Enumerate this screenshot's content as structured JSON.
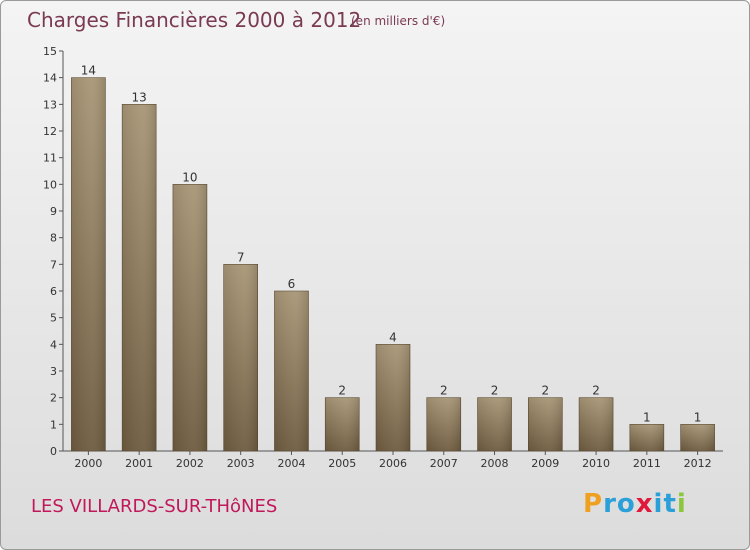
{
  "header": {
    "title": "Charges Financières 2000 à 2012",
    "unit": "(en milliers d'€)"
  },
  "footer": {
    "place": "LES VILLARDS-SUR-THôNES",
    "logo": {
      "text": "Proxiti",
      "letters": [
        {
          "ch": "P",
          "color": "#f0a020"
        },
        {
          "ch": "r",
          "color": "#2a9fd8"
        },
        {
          "ch": "o",
          "color": "#2a9fd8"
        },
        {
          "ch": "x",
          "color": "#e0183c"
        },
        {
          "ch": "i",
          "color": "#2a9fd8"
        },
        {
          "ch": "t",
          "color": "#2a9fd8"
        },
        {
          "ch": "i",
          "color": "#8cc63e"
        }
      ]
    }
  },
  "chart_data": {
    "type": "bar",
    "categories": [
      "2000",
      "2001",
      "2002",
      "2003",
      "2004",
      "2005",
      "2006",
      "2007",
      "2008",
      "2009",
      "2010",
      "2011",
      "2012"
    ],
    "values": [
      14,
      13,
      10,
      7,
      6,
      2,
      4,
      2,
      2,
      2,
      2,
      1,
      1
    ],
    "title": "Charges Financières 2000 à 2012",
    "unit": "(en milliers d'€)",
    "xlabel": "",
    "ylabel": "",
    "ylim": [
      0,
      15
    ],
    "yticks": [
      0,
      1,
      2,
      3,
      4,
      5,
      6,
      7,
      8,
      9,
      10,
      11,
      12,
      13,
      14,
      15
    ],
    "grid": false,
    "legend": "none",
    "bar_color": "#8c7a5e"
  }
}
